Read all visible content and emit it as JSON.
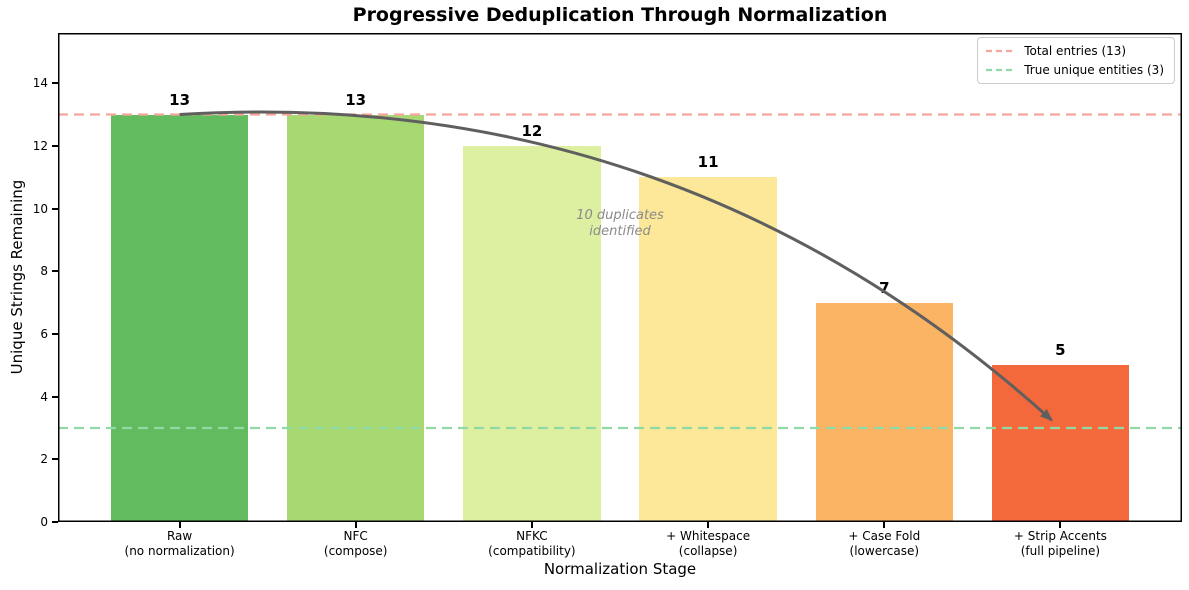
{
  "chart_data": {
    "type": "bar",
    "title": "Progressive Deduplication Through Normalization",
    "xlabel": "Normalization Stage",
    "ylabel": "Unique Strings Remaining",
    "categories": [
      [
        "Raw",
        "(no normalization)"
      ],
      [
        "NFC",
        "(compose)"
      ],
      [
        "NFKC",
        "(compatibility)"
      ],
      [
        "+ Whitespace",
        "(collapse)"
      ],
      [
        "+ Case Fold",
        "(lowercase)"
      ],
      [
        "+ Strip Accents",
        "(full pipeline)"
      ]
    ],
    "values": [
      13,
      13,
      12,
      11,
      7,
      5
    ],
    "bar_colors": [
      "#62bb5e",
      "#a8d872",
      "#ddefa1",
      "#fce898",
      "#fbb464",
      "#f4693c"
    ],
    "ylim": [
      0,
      15.6
    ],
    "yticks": [
      0,
      2,
      4,
      6,
      8,
      10,
      12,
      14
    ],
    "grid": false,
    "legend_position": "upper right",
    "reference_lines": [
      {
        "label": "Total entries (13)",
        "value": 13,
        "color": "#f4a69c",
        "style": "dashed"
      },
      {
        "label": "True unique entities (3)",
        "value": 3,
        "color": "#90d9a4",
        "style": "dashed"
      }
    ],
    "annotation": {
      "lines": [
        "10 duplicates",
        "identified"
      ],
      "x": 2.5,
      "y": 9.5,
      "color": "#8a8a8a"
    },
    "arrow": {
      "from_xy": [
        0,
        13
      ],
      "to_xy": [
        4.95,
        3.25
      ],
      "color": "#5f5f5f"
    }
  }
}
